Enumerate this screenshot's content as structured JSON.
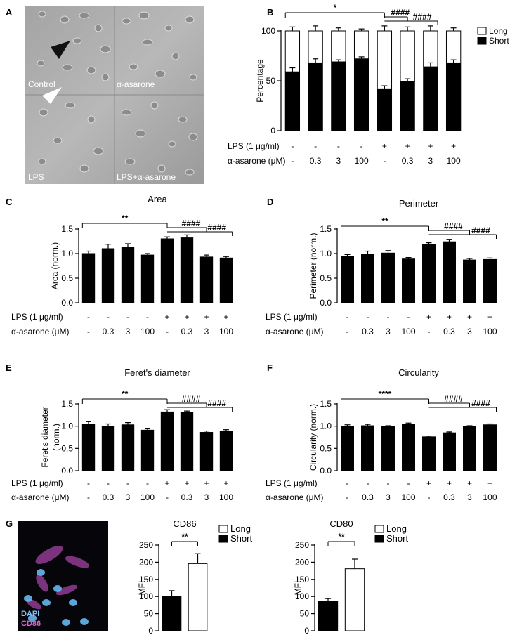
{
  "panels": {
    "A": {
      "label": "A",
      "quadrants": [
        "Control",
        "α-asarone",
        "LPS",
        "LPS+α-asarone"
      ]
    },
    "G": {
      "label": "G",
      "stain_labels": [
        "DAPI",
        "CD86"
      ],
      "stain_colors": [
        "#7fc3ff",
        "#e060d0"
      ]
    }
  },
  "treatments": {
    "lps_label": "LPS (1 μg/ml)",
    "asarone_label": "α-asarone (μM)",
    "lps": [
      "-",
      "-",
      "-",
      "-",
      "+",
      "+",
      "+",
      "+"
    ],
    "asarone": [
      "-",
      "0.3",
      "3",
      "100",
      "-",
      "0.3",
      "3",
      "100"
    ]
  },
  "chart_data": [
    {
      "panel": "B",
      "type": "bar",
      "stacked": true,
      "title": "",
      "ylabel": "Percentage",
      "ylim": [
        0,
        100
      ],
      "yticks": [
        0,
        50,
        100
      ],
      "series": [
        {
          "name": "Short",
          "color": "#000000",
          "values": [
            59,
            68,
            69,
            72,
            42,
            49,
            64,
            68
          ],
          "errors": [
            4,
            4,
            2,
            2,
            3,
            3,
            4,
            3
          ]
        },
        {
          "name": "Long",
          "color": "#ffffff",
          "values": [
            41,
            32,
            31,
            28,
            58,
            51,
            36,
            32
          ],
          "errors": [
            4,
            5,
            3,
            2,
            5,
            4,
            5,
            3
          ]
        }
      ],
      "significance": [
        {
          "from": 0,
          "to": 4,
          "text": "*"
        },
        {
          "from": 4,
          "to": 5,
          "text": "####"
        },
        {
          "from": 4,
          "to": 6,
          "text": "####"
        }
      ]
    },
    {
      "panel": "C",
      "type": "bar",
      "title": "Area",
      "ylabel": "Area (norm.)",
      "ylim": [
        0,
        1.5
      ],
      "yticks": [
        0.0,
        0.5,
        1.0,
        1.5
      ],
      "values": [
        1.0,
        1.1,
        1.13,
        0.97,
        1.3,
        1.32,
        0.93,
        0.91
      ],
      "errors": [
        0.05,
        0.09,
        0.07,
        0.03,
        0.04,
        0.06,
        0.04,
        0.03
      ],
      "significance": [
        {
          "from": 0,
          "to": 4,
          "text": "**"
        },
        {
          "from": 4,
          "to": 6,
          "text": "####"
        },
        {
          "from": 4,
          "to": 7,
          "text": "####"
        }
      ]
    },
    {
      "panel": "D",
      "type": "bar",
      "title": "Perimeter",
      "ylabel": "Perimeter (norm.)",
      "ylim": [
        0,
        1.5
      ],
      "yticks": [
        0.0,
        0.5,
        1.0,
        1.5
      ],
      "values": [
        0.94,
        0.99,
        1.01,
        0.89,
        1.18,
        1.24,
        0.87,
        0.88
      ],
      "errors": [
        0.04,
        0.06,
        0.05,
        0.03,
        0.04,
        0.05,
        0.03,
        0.03
      ],
      "significance": [
        {
          "from": 0,
          "to": 4,
          "text": "**"
        },
        {
          "from": 4,
          "to": 6,
          "text": "####"
        },
        {
          "from": 4,
          "to": 7,
          "text": "####"
        }
      ]
    },
    {
      "panel": "E",
      "type": "bar",
      "title": "Feret's diameter",
      "ylabel": "Feret's diameter (norm.)",
      "ylim": [
        0,
        1.5
      ],
      "yticks": [
        0.0,
        0.5,
        1.0,
        1.5
      ],
      "values": [
        1.05,
        1.0,
        1.03,
        0.91,
        1.32,
        1.31,
        0.86,
        0.89
      ],
      "errors": [
        0.05,
        0.05,
        0.05,
        0.03,
        0.05,
        0.03,
        0.03,
        0.03
      ],
      "significance": [
        {
          "from": 0,
          "to": 4,
          "text": "**"
        },
        {
          "from": 4,
          "to": 6,
          "text": "####"
        },
        {
          "from": 4,
          "to": 7,
          "text": "####"
        }
      ]
    },
    {
      "panel": "F",
      "type": "bar",
      "title": "Circularity",
      "ylabel": "Circularity (norm.)",
      "ylim": [
        0,
        1.5
      ],
      "yticks": [
        0.0,
        0.5,
        1.0,
        1.5
      ],
      "values": [
        1.0,
        1.01,
        0.99,
        1.05,
        0.76,
        0.85,
        0.99,
        1.03
      ],
      "errors": [
        0.03,
        0.03,
        0.02,
        0.02,
        0.02,
        0.02,
        0.02,
        0.02
      ],
      "significance": [
        {
          "from": 0,
          "to": 4,
          "text": "****"
        },
        {
          "from": 4,
          "to": 6,
          "text": "####"
        },
        {
          "from": 4,
          "to": 7,
          "text": "####"
        }
      ]
    },
    {
      "panel": "G1",
      "type": "bar",
      "title": "CD86",
      "ylabel": "MFI",
      "ylim": [
        0,
        250
      ],
      "yticks": [
        0,
        50,
        100,
        150,
        200,
        250
      ],
      "categories": [
        "Short",
        "Long"
      ],
      "values": [
        101,
        196
      ],
      "errors": [
        16,
        29
      ],
      "colors": [
        "#000000",
        "#ffffff"
      ],
      "significance": [
        {
          "from": 0,
          "to": 1,
          "text": "**"
        }
      ]
    },
    {
      "panel": "G2",
      "type": "bar",
      "title": "CD80",
      "ylabel": "MFI",
      "ylim": [
        0,
        250
      ],
      "yticks": [
        0,
        50,
        100,
        150,
        200,
        250
      ],
      "categories": [
        "Short",
        "Long"
      ],
      "values": [
        87,
        181
      ],
      "errors": [
        7,
        28
      ],
      "colors": [
        "#000000",
        "#ffffff"
      ],
      "significance": [
        {
          "from": 0,
          "to": 1,
          "text": "**"
        }
      ]
    }
  ]
}
